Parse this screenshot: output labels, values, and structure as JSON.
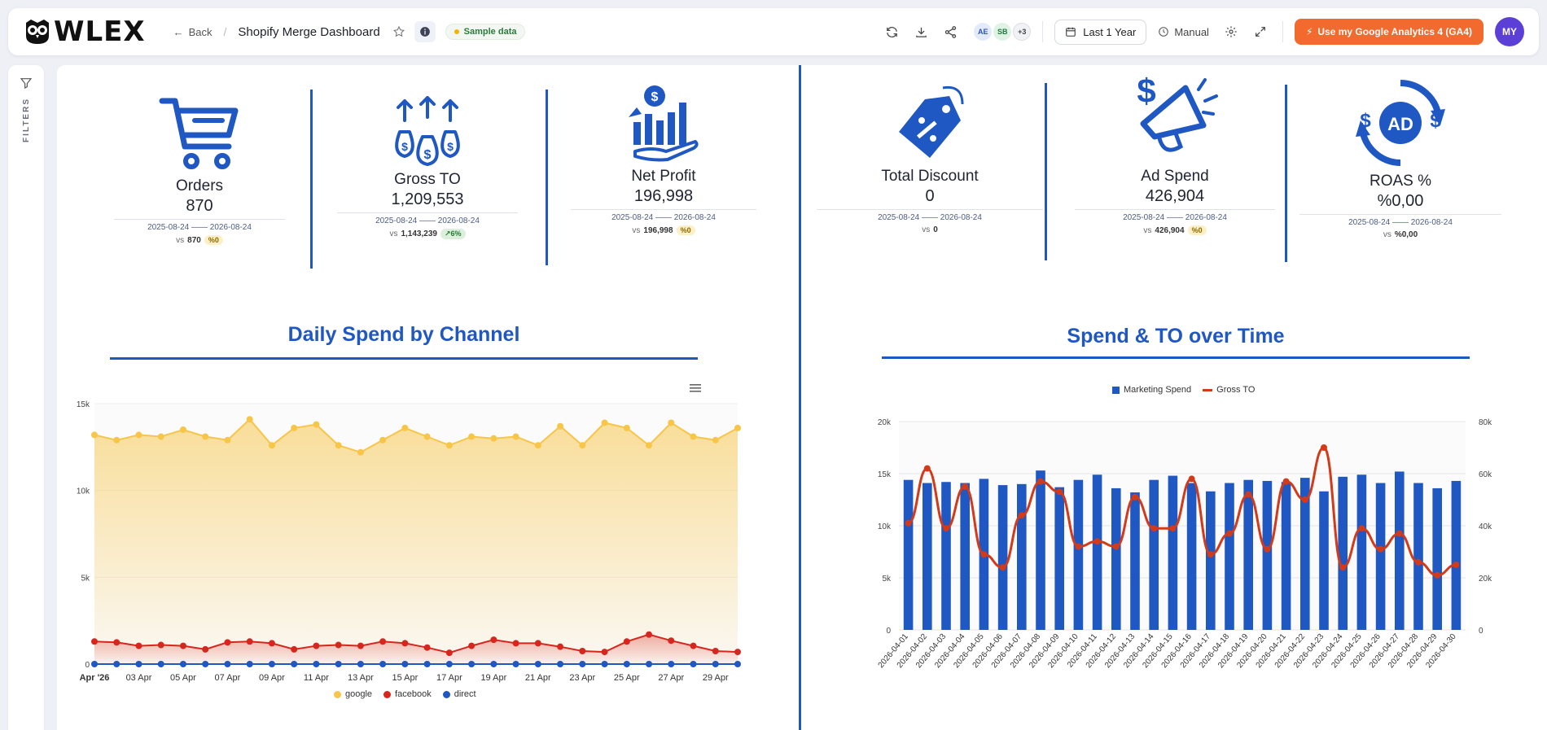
{
  "header": {
    "logo_text": "WLEX",
    "back_label": "Back",
    "breadcrumb_sep": "/",
    "dashboard_title": "Shopify Merge Dashboard",
    "sample_badge": "Sample data",
    "avatars": [
      "AE",
      "SB"
    ],
    "avatars_more": "+3",
    "date_range": "Last 1 Year",
    "refresh_mode": "Manual",
    "ga_button": "Use my Google Analytics 4 (GA4)",
    "user_initials": "MY"
  },
  "filters": {
    "label": "FILTERS"
  },
  "kpis": [
    {
      "label": "Orders",
      "value": "870",
      "dates": "2025-08-24 —— 2026-08-24",
      "vs_prefix": "vs",
      "vs_value": "870",
      "change": "%0",
      "change_type": "neutral",
      "icon": "shopping-cart-icon"
    },
    {
      "label": "Gross TO",
      "value": "1,209,553",
      "dates": "2025-08-24 —— 2026-08-24",
      "vs_prefix": "vs",
      "vs_value": "1,143,239",
      "change": "6%",
      "change_type": "up",
      "icon": "money-bags-icon"
    },
    {
      "label": "Net Profit",
      "value": "196,998",
      "dates": "2025-08-24 —— 2026-08-24",
      "vs_prefix": "vs",
      "vs_value": "196,998",
      "change": "%0",
      "change_type": "neutral",
      "icon": "profit-growth-icon"
    },
    {
      "label": "Total Discount",
      "value": "0",
      "dates": "2025-08-24 —— 2026-08-24",
      "vs_prefix": "vs",
      "vs_value": "0",
      "change": "",
      "change_type": "none",
      "icon": "discount-tag-icon"
    },
    {
      "label": "Ad Spend",
      "value": "426,904",
      "dates": "2025-08-24 —— 2026-08-24",
      "vs_prefix": "vs",
      "vs_value": "426,904",
      "change": "%0",
      "change_type": "neutral",
      "icon": "megaphone-dollar-icon"
    },
    {
      "label": "ROAS %",
      "value": "%0,00",
      "dates": "2025-08-24 —— 2026-08-24",
      "vs_prefix": "vs",
      "vs_value": "%0,00",
      "change": "",
      "change_type": "none",
      "icon": "ad-cycle-icon"
    }
  ],
  "colors": {
    "accent": "#1f57c3",
    "google": "#f7c548",
    "facebook": "#d7261e",
    "direct": "#1f57c3",
    "bar": "#1f57c3",
    "gross_line": "#d23a1a",
    "ga_button": "#f26a2e"
  },
  "chart_data": [
    {
      "type": "area",
      "title": "Daily Spend by Channel",
      "x_ticks": [
        "Apr '26",
        "03 Apr",
        "05 Apr",
        "07 Apr",
        "09 Apr",
        "11 Apr",
        "13 Apr",
        "15 Apr",
        "17 Apr",
        "19 Apr",
        "21 Apr",
        "23 Apr",
        "25 Apr",
        "27 Apr",
        "29 Apr"
      ],
      "y_ticks": [
        "0",
        "5k",
        "10k",
        "15k"
      ],
      "ylim": [
        0,
        15000
      ],
      "days": 30,
      "series": [
        {
          "name": "google",
          "values": [
            13200,
            12900,
            13200,
            13100,
            13500,
            13100,
            12900,
            14100,
            12600,
            13600,
            13800,
            12600,
            12200,
            12900,
            13600,
            13100,
            12600,
            13100,
            13000,
            13100,
            12600,
            13700,
            12600,
            13900,
            13600,
            12600,
            13900,
            13100,
            12900,
            13600
          ]
        },
        {
          "name": "facebook",
          "values": [
            1300,
            1250,
            1050,
            1100,
            1050,
            850,
            1250,
            1300,
            1200,
            850,
            1050,
            1100,
            1050,
            1300,
            1200,
            950,
            650,
            1050,
            1400,
            1200,
            1200,
            1000,
            750,
            700,
            1300,
            1700,
            1350,
            1050,
            750,
            700
          ]
        },
        {
          "name": "direct",
          "values": [
            0,
            0,
            0,
            0,
            0,
            0,
            0,
            0,
            0,
            0,
            0,
            0,
            0,
            0,
            0,
            0,
            0,
            0,
            0,
            0,
            0,
            0,
            0,
            0,
            0,
            0,
            0,
            0,
            0,
            0
          ]
        }
      ],
      "legend": "bottom-center",
      "grid": true
    },
    {
      "type": "bar",
      "title": "Spend & TO over Time",
      "categories": [
        "2026-04-01",
        "2026-04-02",
        "2026-04-03",
        "2026-04-04",
        "2026-04-05",
        "2026-04-06",
        "2026-04-07",
        "2026-04-08",
        "2026-04-09",
        "2026-04-10",
        "2026-04-11",
        "2026-04-12",
        "2026-04-13",
        "2026-04-14",
        "2026-04-15",
        "2026-04-16",
        "2026-04-17",
        "2026-04-18",
        "2026-04-19",
        "2026-04-20",
        "2026-04-21",
        "2026-04-22",
        "2026-04-23",
        "2026-04-24",
        "2026-04-25",
        "2026-04-26",
        "2026-04-27",
        "2026-04-28",
        "2026-04-29",
        "2026-04-30"
      ],
      "y_ticks_left": [
        "0",
        "5k",
        "10k",
        "15k",
        "20k"
      ],
      "y_ticks_right": [
        "0",
        "20k",
        "40k",
        "60k",
        "80k"
      ],
      "ylim_left": [
        0,
        20000
      ],
      "ylim_right": [
        0,
        80000
      ],
      "series": [
        {
          "name": "Marketing Spend",
          "axis": "left",
          "kind": "bar",
          "values": [
            14400,
            14100,
            14200,
            14100,
            14500,
            13900,
            14000,
            15300,
            13700,
            14400,
            14900,
            13600,
            13200,
            14400,
            14800,
            14100,
            13300,
            14100,
            14400,
            14300,
            14200,
            14600,
            13300,
            14700,
            14900,
            14100,
            15200,
            14100,
            13600,
            14300
          ]
        },
        {
          "name": "Gross TO",
          "axis": "right",
          "kind": "line",
          "values": [
            41000,
            62000,
            39000,
            55000,
            29000,
            24000,
            44000,
            57000,
            53000,
            32000,
            34000,
            32000,
            51000,
            39000,
            39000,
            58000,
            29000,
            37000,
            52000,
            31000,
            57000,
            50000,
            70000,
            24000,
            39000,
            31000,
            37000,
            26000,
            21000,
            25000
          ]
        }
      ],
      "legend": "top-center",
      "grid": true
    }
  ]
}
